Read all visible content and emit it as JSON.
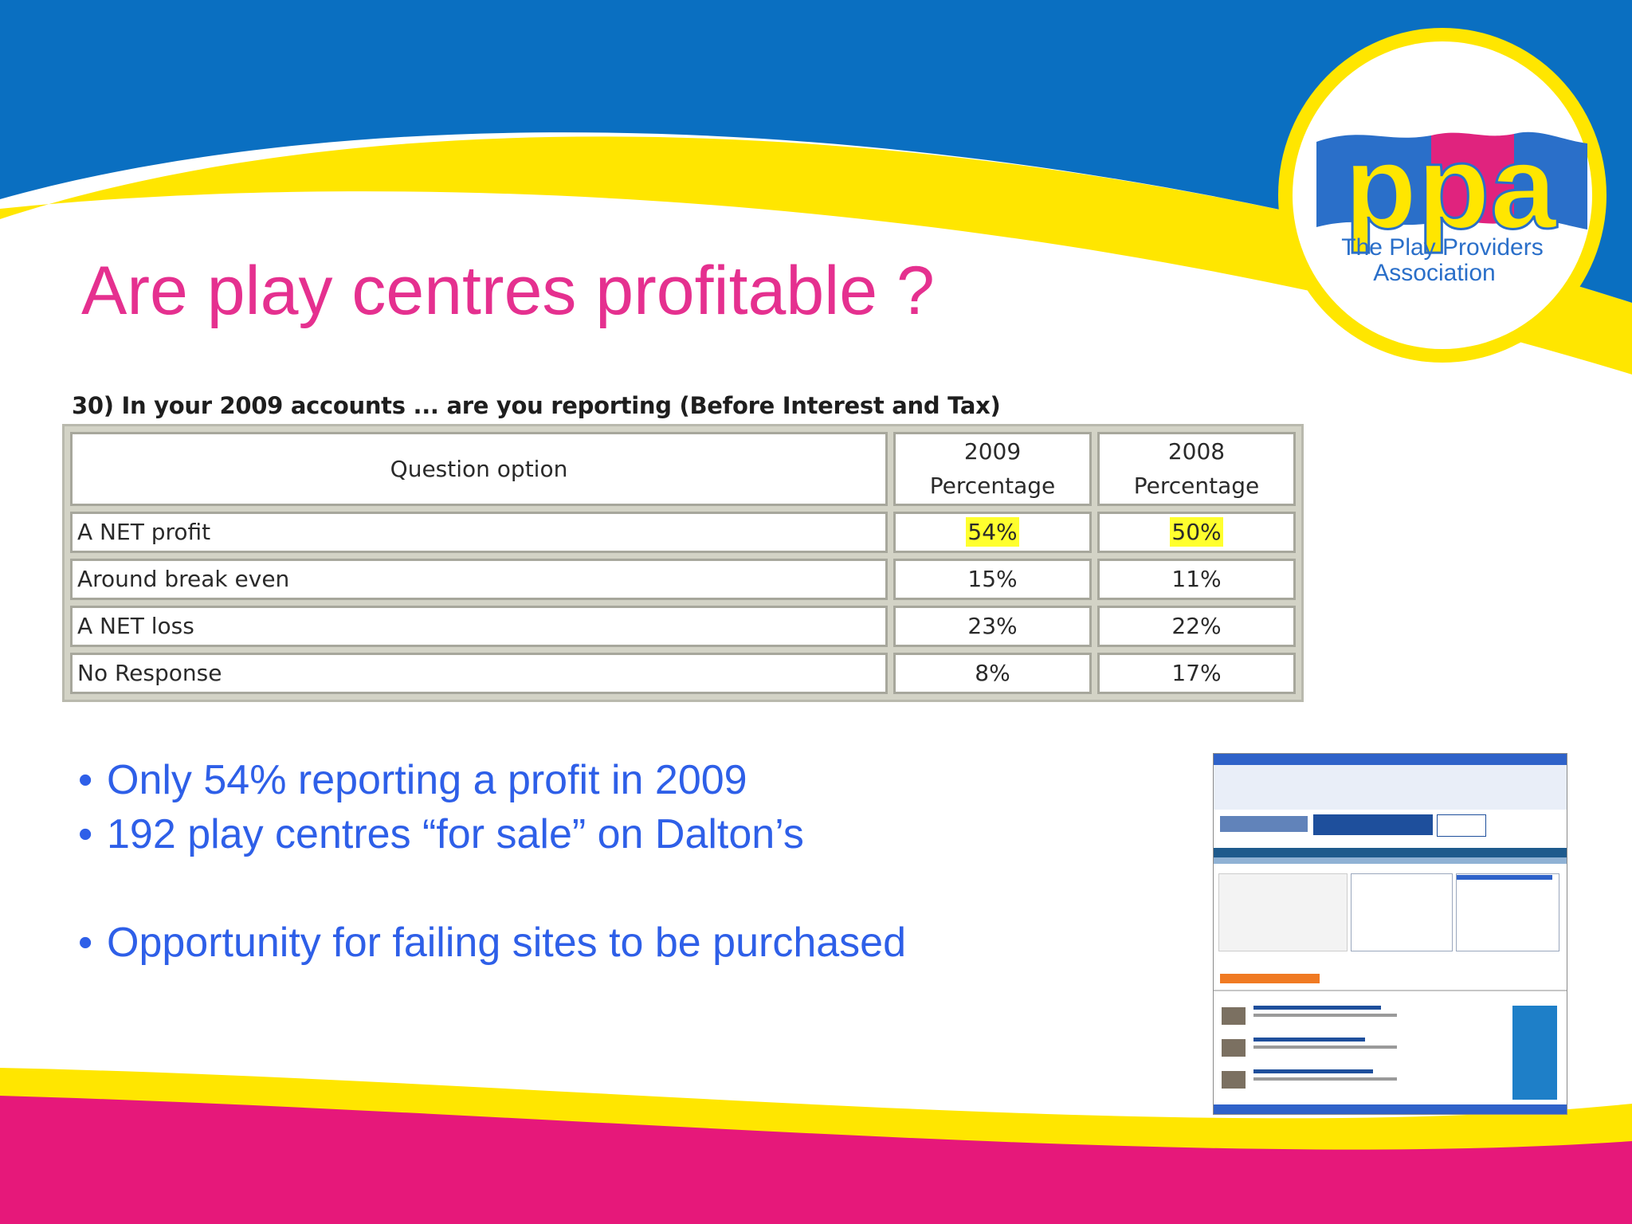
{
  "slide": {
    "title": "Are play centres profitable ?",
    "logo": {
      "letters": "ppa",
      "caption_line1": "The Play Providers",
      "caption_line2": "Association"
    },
    "survey": {
      "question": "30) In your 2009 accounts ... are you reporting (Before Interest and Tax)",
      "headers": {
        "option": "Question option",
        "col2009_year": "2009",
        "col2009_unit": "Percentage",
        "col2008_year": "2008",
        "col2008_unit": "Percentage"
      },
      "rows": [
        {
          "option": "A NET profit",
          "pct2009": "54%",
          "pct2008": "50%",
          "highlighted": true
        },
        {
          "option": "Around break even",
          "pct2009": "15%",
          "pct2008": "11%",
          "highlighted": false
        },
        {
          "option": "A NET loss",
          "pct2009": "23%",
          "pct2008": "22%",
          "highlighted": false
        },
        {
          "option": "No Response",
          "pct2009": "8%",
          "pct2008": "17%",
          "highlighted": false
        }
      ]
    },
    "bullets": [
      "Only 54% reporting a profit in 2009",
      "192 play centres “for sale” on Dalton’s",
      "Opportunity for failing sites to be purchased"
    ],
    "colors": {
      "title": "#e5308f",
      "bullets": "#2e5fe8",
      "top_band": "#0a6fc1",
      "wave_yellow": "#ffe600",
      "bottom_band": "#e6187a",
      "highlight": "#ffff2e"
    }
  }
}
